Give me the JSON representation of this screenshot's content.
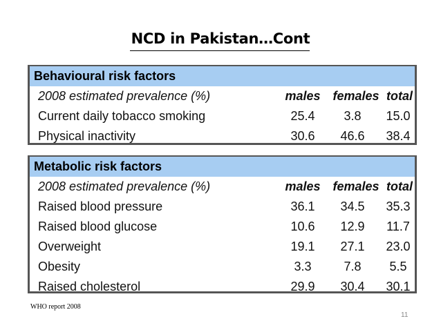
{
  "slide": {
    "title": "NCD in Pakistan…Cont",
    "footnote": "WHO report 2008",
    "page_number": "11"
  },
  "behavioural": {
    "header": "Behavioural risk factors",
    "subheader": {
      "label": "2008 estimated prevalence (%)",
      "males": "males",
      "females": "females",
      "total": "total"
    },
    "rows": [
      {
        "label": "Current daily tobacco smoking",
        "males": "25.4",
        "females": "3.8",
        "total": "15.0"
      },
      {
        "label": "Physical inactivity",
        "males": "30.6",
        "females": "46.6",
        "total": "38.4"
      }
    ]
  },
  "metabolic": {
    "header": "Metabolic risk factors",
    "subheader": {
      "label": "2008 estimated prevalence (%)",
      "males": "males",
      "females": "females",
      "total": "total"
    },
    "rows": [
      {
        "label": "Raised blood pressure",
        "males": "36.1",
        "females": "34.5",
        "total": "35.3"
      },
      {
        "label": "Raised blood glucose",
        "males": "10.6",
        "females": "12.9",
        "total": "11.7"
      },
      {
        "label": "Overweight",
        "males": "19.1",
        "females": "27.1",
        "total": "23.0"
      },
      {
        "label": "Obesity",
        "males": "3.3",
        "females": "7.8",
        "total": "5.5"
      },
      {
        "label": "Raised cholesterol",
        "males": "29.9",
        "females": "30.4",
        "total": "30.1"
      }
    ]
  }
}
